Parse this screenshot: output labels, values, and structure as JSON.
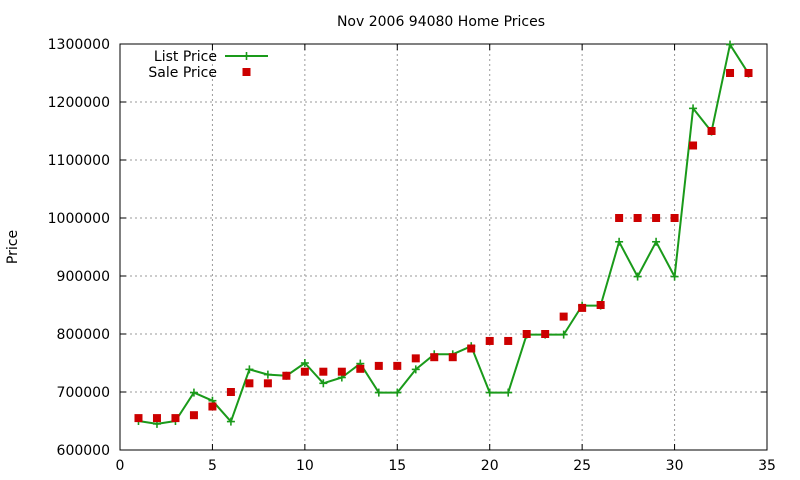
{
  "chart_data": {
    "type": "line",
    "title": "Nov 2006 94080 Home Prices",
    "xlabel": "",
    "ylabel": "Price",
    "xlim": [
      0,
      35
    ],
    "ylim": [
      600000,
      1300000
    ],
    "x_ticks": [
      "0",
      "5",
      "10",
      "15",
      "20",
      "25",
      "30",
      "35"
    ],
    "y_ticks": [
      "600000",
      "700000",
      "800000",
      "900000",
      "1000000",
      "1100000",
      "1200000",
      "1300000"
    ],
    "grid": true,
    "legend_position": "top-left",
    "series": [
      {
        "name": "List Price",
        "style": "line-with-plus-markers",
        "color": "#1a9a1a",
        "x": [
          1,
          2,
          3,
          4,
          5,
          6,
          7,
          8,
          9,
          10,
          11,
          12,
          13,
          14,
          15,
          16,
          17,
          18,
          19,
          20,
          21,
          22,
          23,
          24,
          25,
          26,
          27,
          28,
          29,
          30,
          31,
          32,
          33,
          34
        ],
        "values": [
          650000,
          645000,
          650000,
          699000,
          685000,
          649000,
          739000,
          730000,
          728000,
          750000,
          715000,
          725000,
          749000,
          699000,
          699000,
          739000,
          765000,
          765000,
          779000,
          699000,
          699000,
          799000,
          799000,
          799000,
          849000,
          849000,
          959000,
          899000,
          959000,
          899000,
          1189000,
          1149000,
          1299000,
          1249000
        ]
      },
      {
        "name": "Sale Price",
        "style": "square-markers",
        "color": "#cc0000",
        "x": [
          1,
          2,
          3,
          4,
          5,
          6,
          7,
          8,
          9,
          10,
          11,
          12,
          13,
          14,
          15,
          16,
          17,
          18,
          19,
          20,
          21,
          22,
          23,
          24,
          25,
          26,
          27,
          28,
          29,
          30,
          31,
          32,
          33,
          34
        ],
        "values": [
          655000,
          655000,
          655000,
          660000,
          675000,
          700000,
          715000,
          715000,
          728000,
          735000,
          735000,
          735000,
          740000,
          745000,
          745000,
          758000,
          760000,
          760000,
          775000,
          788000,
          788000,
          800000,
          800000,
          830000,
          845000,
          850000,
          1000000,
          1000000,
          1000000,
          1000000,
          1125000,
          1150000,
          1250000,
          1250000
        ]
      }
    ]
  }
}
